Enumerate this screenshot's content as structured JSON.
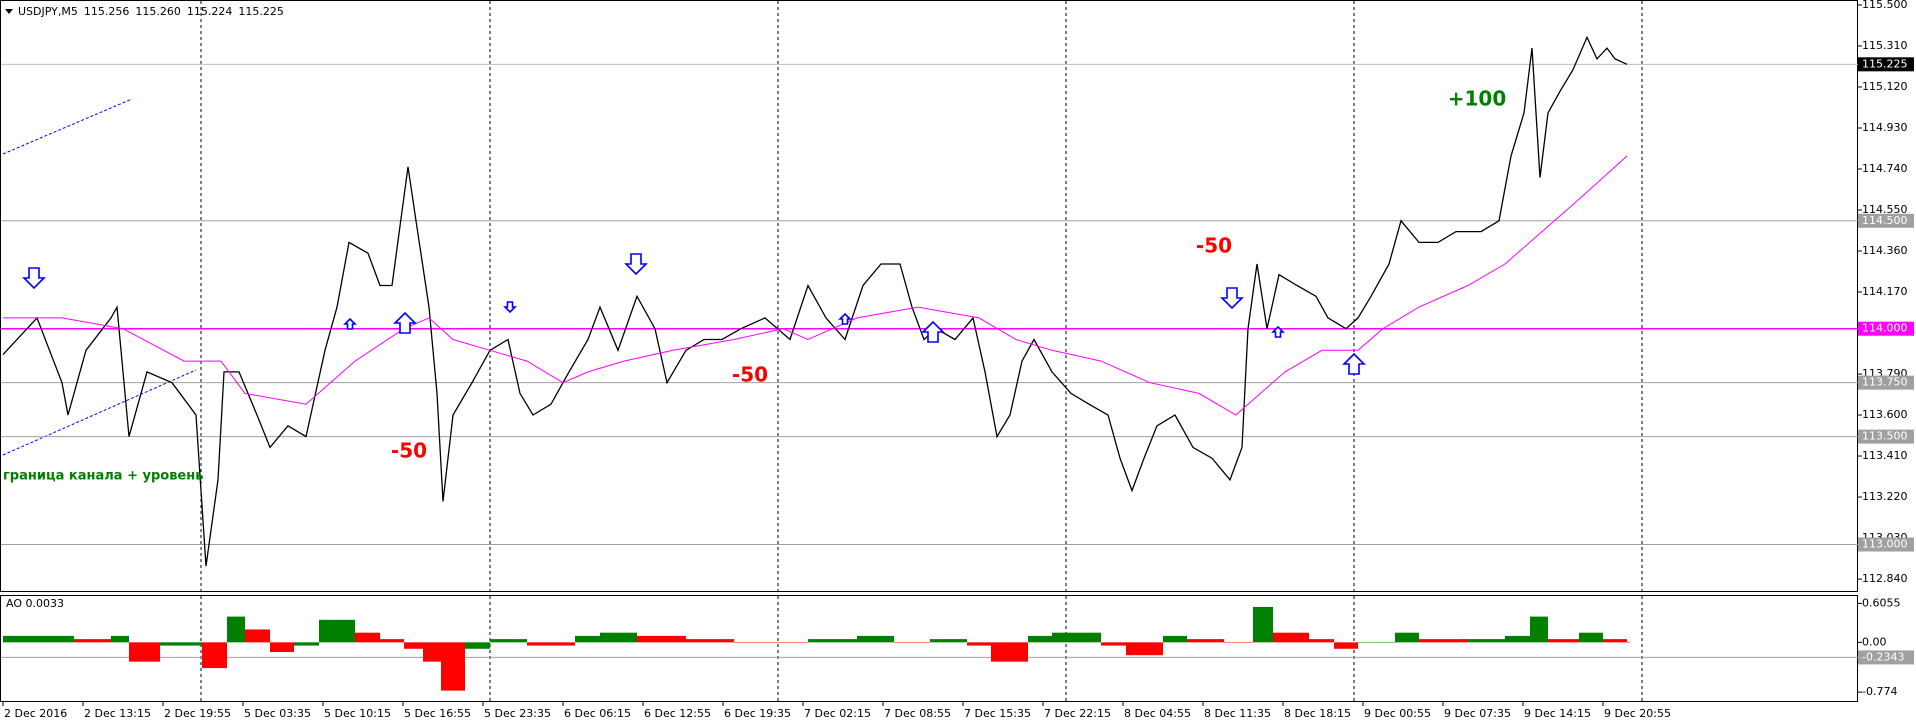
{
  "chart_data": [
    {
      "type": "line",
      "symbol": "USDJPY,M5",
      "ohlc": [
        "115.256",
        "115.260",
        "115.224",
        "115.225"
      ],
      "xlim": [
        -3,
        1855
      ],
      "ylim": [
        112.78,
        115.523
      ],
      "yticks": [
        {
          "value": 115.5,
          "label": "115.500"
        },
        {
          "value": 115.31,
          "label": "115.310"
        },
        {
          "value": 115.12,
          "label": "115.120"
        },
        {
          "value": 114.93,
          "label": "114.930"
        },
        {
          "value": 114.74,
          "label": "114.740"
        },
        {
          "value": 114.55,
          "label": "114.550"
        },
        {
          "value": 114.36,
          "label": "114.360"
        },
        {
          "value": 114.17,
          "label": "114.170"
        },
        {
          "value": 113.79,
          "label": "113.790"
        },
        {
          "value": 113.6,
          "label": "113.600"
        },
        {
          "value": 113.41,
          "label": "113.410"
        },
        {
          "value": 113.22,
          "label": "113.220"
        },
        {
          "value": 113.03,
          "label": "113.030"
        },
        {
          "value": 112.84,
          "label": "112.840"
        }
      ],
      "levels": [
        {
          "value": 114.5,
          "label": "114.500",
          "color": "#a0a0a0"
        },
        {
          "value": 114.0,
          "label": "114.000",
          "color": "#ff00ff"
        },
        {
          "value": 113.75,
          "label": "113.750",
          "color": "#a0a0a0"
        },
        {
          "value": 113.5,
          "label": "113.500",
          "color": "#a0a0a0"
        },
        {
          "value": 113.0,
          "label": "113.000",
          "color": "#a0a0a0"
        }
      ],
      "current_price": {
        "value": 115.225,
        "label": "115.225"
      },
      "day_separators": [
        198,
        487,
        775,
        1063,
        1351,
        1639
      ],
      "annotations": [
        {
          "text": "+100",
          "color": "#008000"
        },
        {
          "text": "-50",
          "color": "#ff0000"
        },
        {
          "text": "-50",
          "color": "#ff0000"
        },
        {
          "text": "-50",
          "color": "#ff0000"
        },
        {
          "text": "граница канала + уровень",
          "color": "#008000"
        }
      ],
      "series": [
        {
          "color": "#000000",
          "x": [
            0,
            34,
            59,
            65,
            83,
            108,
            114,
            126,
            144,
            169,
            193,
            203,
            215,
            221,
            236,
            254,
            267,
            285,
            303,
            322,
            334,
            346,
            365,
            377,
            389,
            405,
            413,
            426,
            434,
            440,
            450,
            469,
            487,
            505,
            517,
            530,
            548,
            566,
            585,
            597,
            615,
            634,
            652,
            664,
            683,
            701,
            719,
            738,
            762,
            787,
            805,
            823,
            842,
            860,
            878,
            897,
            909,
            921,
            933,
            952,
            970,
            982,
            994,
            1007,
            1019,
            1031,
            1049,
            1068,
            1086,
            1105,
            1117,
            1129,
            1141,
            1154,
            1172,
            1190,
            1209,
            1227,
            1239,
            1245,
            1254,
            1264,
            1276,
            1294,
            1313,
            1325,
            1343,
            1355,
            1368,
            1386,
            1398,
            1416,
            1435,
            1453,
            1478,
            1496,
            1508,
            1521,
            1529,
            1537,
            1545,
            1557,
            1570,
            1584,
            1594,
            1604,
            1612,
            1624
          ],
          "values": [
            113.88,
            114.05,
            113.75,
            113.6,
            113.9,
            114.05,
            114.1,
            113.5,
            113.8,
            113.75,
            113.6,
            112.9,
            113.3,
            113.8,
            113.8,
            113.6,
            113.45,
            113.55,
            113.5,
            113.9,
            114.1,
            114.4,
            114.35,
            114.2,
            114.2,
            114.75,
            114.5,
            114.1,
            113.7,
            113.2,
            113.6,
            113.75,
            113.9,
            113.95,
            113.7,
            113.6,
            113.65,
            113.8,
            113.95,
            114.1,
            113.9,
            114.15,
            114.0,
            113.75,
            113.9,
            113.95,
            113.95,
            114.0,
            114.05,
            113.95,
            114.2,
            114.05,
            113.95,
            114.2,
            114.3,
            114.3,
            114.1,
            113.95,
            114.0,
            113.95,
            114.05,
            113.8,
            113.5,
            113.6,
            113.85,
            113.95,
            113.8,
            113.7,
            113.65,
            113.6,
            113.4,
            113.25,
            113.4,
            113.55,
            113.6,
            113.45,
            113.4,
            113.3,
            113.45,
            114.0,
            114.3,
            114.0,
            114.25,
            114.2,
            114.15,
            114.05,
            114.0,
            114.05,
            114.15,
            114.3,
            114.5,
            114.4,
            114.4,
            114.45,
            114.45,
            114.5,
            114.8,
            115.0,
            115.3,
            114.7,
            115.0,
            115.1,
            115.2,
            115.35,
            115.25,
            115.3,
            115.25,
            115.225
          ]
        },
        {
          "color": "#ff00ff",
          "x": [
            0,
            59,
            120,
            181,
            218,
            242,
            303,
            352,
            401,
            426,
            450,
            487,
            524,
            560,
            585,
            621,
            670,
            731,
            780,
            805,
            854,
            915,
            976,
            1013,
            1049,
            1098,
            1147,
            1196,
            1233,
            1245,
            1282,
            1319,
            1355,
            1380,
            1416,
            1465,
            1502,
            1539,
            1576,
            1600,
            1624
          ],
          "values": [
            114.05,
            114.05,
            114.0,
            113.85,
            113.85,
            113.7,
            113.65,
            113.85,
            114.0,
            114.05,
            113.95,
            113.9,
            113.85,
            113.75,
            113.8,
            113.85,
            113.9,
            113.95,
            114.0,
            113.95,
            114.05,
            114.1,
            114.05,
            113.95,
            113.9,
            113.85,
            113.75,
            113.7,
            113.6,
            113.65,
            113.8,
            113.9,
            113.9,
            114.0,
            114.1,
            114.2,
            114.3,
            114.45,
            114.6,
            114.7,
            114.8
          ]
        }
      ]
    },
    {
      "type": "histogram",
      "title": "AO 0.0033",
      "xlim": [
        -3,
        1855
      ],
      "ylim": [
        -0.927,
        0.72
      ],
      "yticks": [
        {
          "value": 0.6055,
          "label": "0.6055"
        },
        {
          "value": 0,
          "label": "0.00"
        },
        {
          "value": -0.774,
          "label": "-0.774"
        }
      ],
      "level": {
        "value": -0.2343,
        "label": "-0.2343"
      },
      "up_color": "#008000",
      "down_color": "#ff0000",
      "xticks": [
        {
          "value": 0,
          "label": "2 Dec 2016"
        },
        {
          "value": 80,
          "label": "2 Dec 13:15"
        },
        {
          "value": 160,
          "label": "2 Dec 19:55"
        },
        {
          "value": 240,
          "label": "5 Dec 03:35"
        },
        {
          "value": 320,
          "label": "5 Dec 10:15"
        },
        {
          "value": 400,
          "label": "5 Dec 16:55"
        },
        {
          "value": 480,
          "label": "5 Dec 23:35"
        },
        {
          "value": 560,
          "label": "6 Dec 06:15"
        },
        {
          "value": 640,
          "label": "6 Dec 12:55"
        },
        {
          "value": 720,
          "label": "6 Dec 19:35"
        },
        {
          "value": 800,
          "label": "7 Dec 02:15"
        },
        {
          "value": 880,
          "label": "7 Dec 08:55"
        },
        {
          "value": 960,
          "label": "7 Dec 15:35"
        },
        {
          "value": 1040,
          "label": "7 Dec 22:15"
        },
        {
          "value": 1120,
          "label": "8 Dec 04:55"
        },
        {
          "value": 1200,
          "label": "8 Dec 11:35"
        },
        {
          "value": 1280,
          "label": "8 Dec 18:15"
        },
        {
          "value": 1360,
          "label": "9 Dec 00:55"
        },
        {
          "value": 1440,
          "label": "9 Dec 07:35"
        },
        {
          "value": 1520,
          "label": "9 Dec 14:15"
        },
        {
          "value": 1600,
          "label": "9 Dec 20:55"
        }
      ],
      "x": [
        0,
        34,
        71,
        108,
        126,
        157,
        199,
        224,
        242,
        267,
        291,
        316,
        352,
        377,
        401,
        420,
        438,
        462,
        487,
        524,
        572,
        597,
        634,
        683,
        731,
        805,
        854,
        891,
        927,
        964,
        988,
        1025,
        1049,
        1098,
        1123,
        1160,
        1184,
        1221,
        1250,
        1270,
        1306,
        1331,
        1355,
        1392,
        1416,
        1465,
        1502,
        1527,
        1545,
        1576,
        1600,
        1624
      ],
      "values": [
        0.1,
        0.1,
        0.05,
        0.1,
        -0.3,
        -0.05,
        -0.4,
        0.4,
        0.2,
        -0.15,
        -0.05,
        0.35,
        0.15,
        0.05,
        -0.1,
        -0.3,
        -0.75,
        -0.1,
        0.05,
        -0.05,
        0.1,
        0.15,
        0.1,
        0.05,
        0.0,
        0.05,
        0.1,
        0.0,
        0.05,
        -0.05,
        -0.3,
        0.1,
        0.15,
        -0.05,
        -0.2,
        0.1,
        0.05,
        0.0,
        0.55,
        0.15,
        0.05,
        -0.1,
        0.0,
        0.15,
        0.05,
        0.05,
        0.1,
        0.4,
        0.05,
        0.15,
        0.05,
        0.0
      ]
    }
  ]
}
